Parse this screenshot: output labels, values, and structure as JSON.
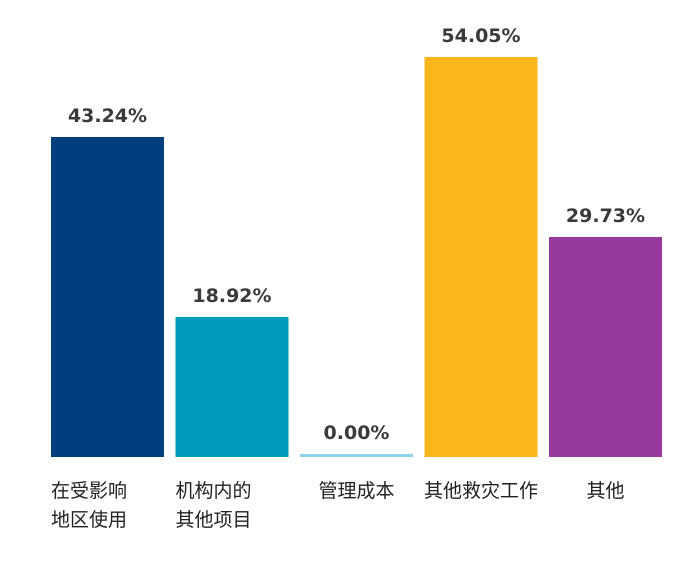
{
  "chart_data": {
    "type": "bar",
    "categories": [
      [
        "在受影响",
        "地区使用"
      ],
      [
        "机构内的",
        "其他项目"
      ],
      [
        "管理成本"
      ],
      [
        "其他救灾工作"
      ],
      [
        "其他"
      ]
    ],
    "values": [
      43.24,
      18.92,
      0.0,
      54.05,
      29.73
    ],
    "value_labels": [
      "43.24%",
      "18.92%",
      "0.00%",
      "54.05%",
      "29.73%"
    ],
    "colors": [
      "#003f7d",
      "#009bbd",
      "#8fd3e8",
      "#fbb61b",
      "#97399a"
    ],
    "ylim": [
      0,
      54.05
    ],
    "grid": false,
    "legend": "none"
  }
}
